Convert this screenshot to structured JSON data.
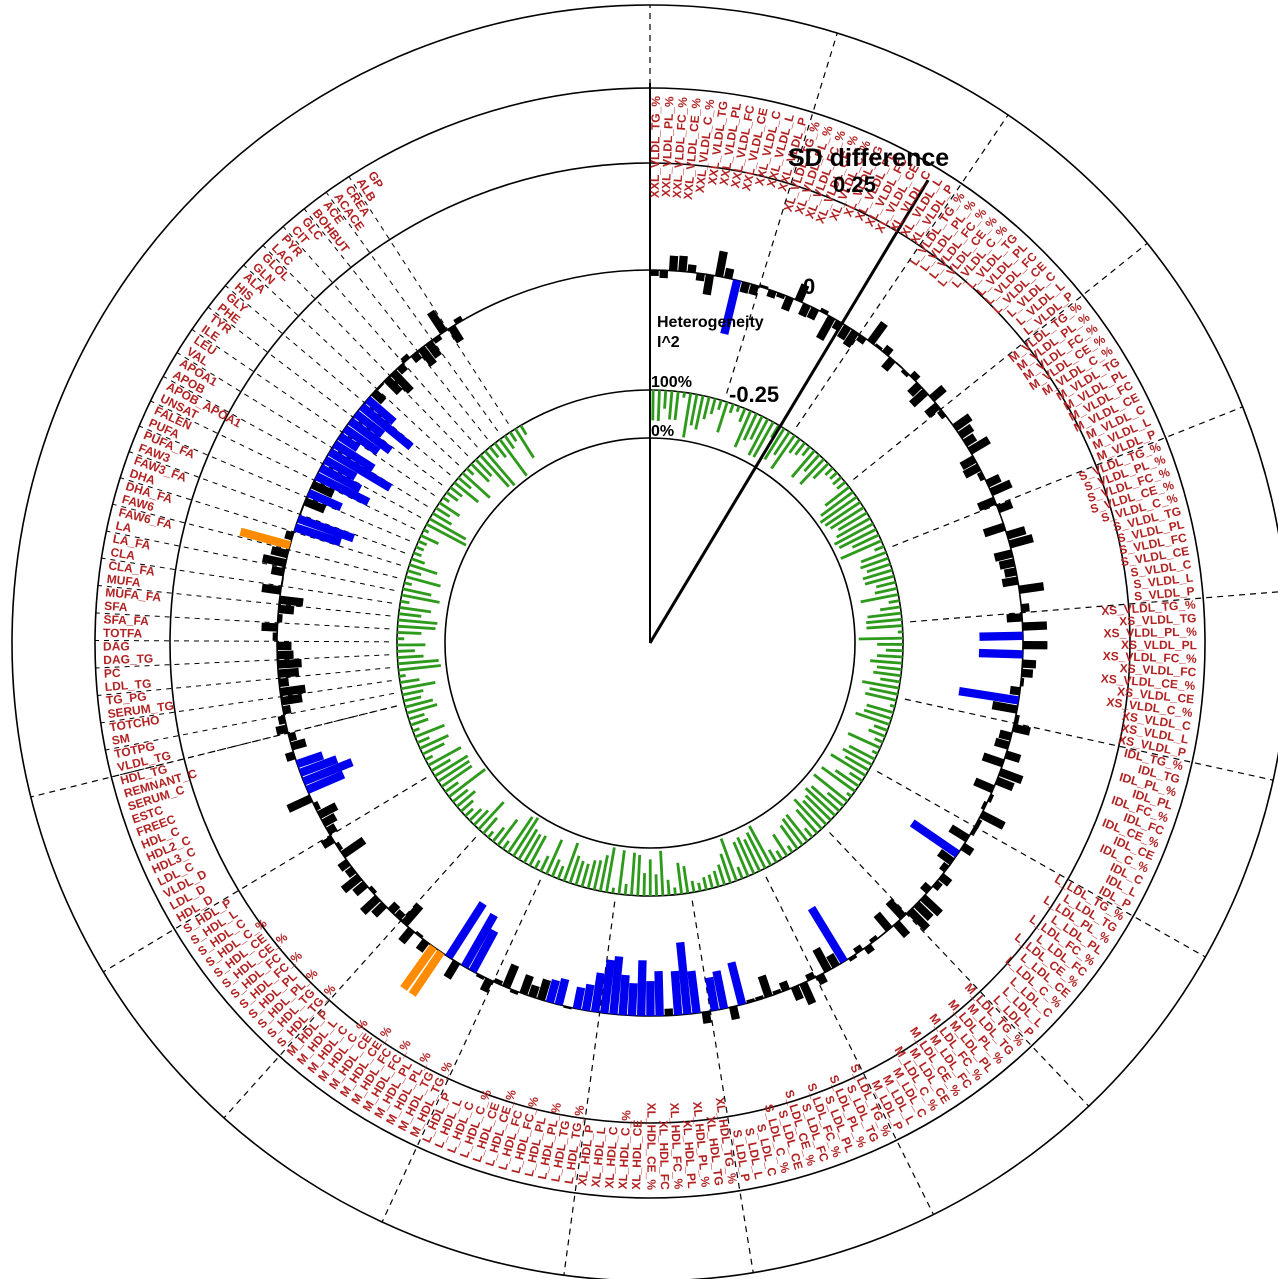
{
  "chart_data": {
    "type": "radial-bar",
    "title": "",
    "metabolites": [
      "XXL_VLDL_TG_%",
      "XXL_VLDL_PL_%",
      "XXL_VLDL_FC_%",
      "XXL_VLDL_CE_%",
      "XXL_VLDL_C_%",
      "XXL_VLDL_TG",
      "XXL_VLDL_PL",
      "XXL_VLDL_FC",
      "XXL_VLDL_CE",
      "XXL_VLDL_C",
      "XXL_VLDL_L",
      "XXL_VLDL_P",
      "XL_VLDL_TG_%",
      "XL_VLDL_PL_%",
      "XL_VLDL_FC_%",
      "XL_VLDL_CE_%",
      "XL_VLDL_C_%",
      "XL_VLDL_TG",
      "XL_VLDL_PL",
      "XL_VLDL_FC",
      "XL_VLDL_CE",
      "XL_VLDL_C",
      "XL_VLDL_L",
      "XL_VLDL_P",
      "L_VLDL_TG_%",
      "L_VLDL_PL_%",
      "L_VLDL_FC_%",
      "L_VLDL_CE_%",
      "L_VLDL_C_%",
      "L_VLDL_TG",
      "L_VLDL_PL",
      "L_VLDL_FC",
      "L_VLDL_CE",
      "L_VLDL_C",
      "L_VLDL_L",
      "L_VLDL_P",
      "M_VLDL_TG_%",
      "M_VLDL_PL_%",
      "M_VLDL_FC_%",
      "M_VLDL_CE_%",
      "M_VLDL_C_%",
      "M_VLDL_TG",
      "M_VLDL_PL",
      "M_VLDL_FC",
      "M_VLDL_CE",
      "M_VLDL_C",
      "M_VLDL_L",
      "M_VLDL_P",
      "S_VLDL_TG_%",
      "S_VLDL_PL_%",
      "S_VLDL_FC_%",
      "S_VLDL_CE_%",
      "S_VLDL_C_%",
      "S_VLDL_TG",
      "S_VLDL_PL",
      "S_VLDL_FC",
      "S_VLDL_CE",
      "S_VLDL_C",
      "S_VLDL_L",
      "S_VLDL_P",
      "XS_VLDL_TG_%",
      "XS_VLDL_TG",
      "XS_VLDL_PL_%",
      "XS_VLDL_PL",
      "XS_VLDL_FC_%",
      "XS_VLDL_FC",
      "XS_VLDL_CE_%",
      "XS_VLDL_CE",
      "XS_VLDL_C_%",
      "XS_VLDL_C",
      "XS_VLDL_L",
      "XS_VLDL_P",
      "IDL_TG_%",
      "IDL_TG",
      "IDL_PL_%",
      "IDL_PL",
      "IDL_FC_%",
      "IDL_FC",
      "IDL_CE_%",
      "IDL_CE",
      "IDL_C_%",
      "IDL_C",
      "IDL_L",
      "IDL_P",
      "L_LDL_TG_%",
      "L_LDL_TG",
      "L_LDL_PL_%",
      "L_LDL_PL",
      "L_LDL_FC_%",
      "L_LDL_FC",
      "L_LDL_CE_%",
      "L_LDL_CE",
      "L_LDL_C_%",
      "L_LDL_C",
      "L_LDL_L",
      "L_LDL_P",
      "M_LDL_TG_%",
      "M_LDL_TG",
      "M_LDL_PL_%",
      "M_LDL_PL",
      "M_LDL_FC_%",
      "M_LDL_FC",
      "M_LDL_CE_%",
      "M_LDL_CE",
      "M_LDL_C_%",
      "M_LDL_C",
      "M_LDL_L",
      "M_LDL_P",
      "S_LDL_TG_%",
      "S_LDL_TG",
      "S_LDL_PL_%",
      "S_LDL_PL",
      "S_LDL_FC_%",
      "S_LDL_FC",
      "S_LDL_CE_%",
      "S_LDL_CE",
      "S_LDL_C_%",
      "S_LDL_C",
      "S_LDL_L",
      "S_LDL_P",
      "XL_HDL_TG_%",
      "XL_HDL_TG",
      "XL_HDL_PL_%",
      "XL_HDL_PL",
      "XL_HDL_FC_%",
      "XL_HDL_FC",
      "XL_HDL_CE_%",
      "XL_HDL_CE",
      "XL_HDL_C_%",
      "XL_HDL_C",
      "XL_HDL_L",
      "XL_HDL_P",
      "L_HDL_TG_%",
      "L_HDL_TG",
      "L_HDL_PL_%",
      "L_HDL_PL",
      "L_HDL_FC_%",
      "L_HDL_FC",
      "L_HDL_CE_%",
      "L_HDL_CE",
      "L_HDL_C_%",
      "L_HDL_C",
      "L_HDL_L",
      "L_HDL_P",
      "M_HDL_TG_%",
      "M_HDL_TG",
      "M_HDL_PL_%",
      "M_HDL_PL",
      "M_HDL_FC_%",
      "M_HDL_FC",
      "M_HDL_CE_%",
      "M_HDL_CE",
      "M_HDL_C_%",
      "M_HDL_C",
      "M_HDL_L",
      "M_HDL_P",
      "S_HDL_TG_%",
      "S_HDL_TG",
      "S_HDL_PL_%",
      "S_HDL_PL",
      "S_HDL_FC_%",
      "S_HDL_FC",
      "S_HDL_CE_%",
      "S_HDL_CE",
      "S_HDL_C_%",
      "S_HDL_C",
      "S_HDL_L",
      "S_HDL_P",
      "HDL_D",
      "LDL_D",
      "VLDL_D",
      "LDL_C",
      "HDL3_C",
      "HDL2_C",
      "HDL_C",
      "FREEC",
      "ESTC",
      "SERUM_C",
      "REMNANT_C",
      "HDL_TG",
      "VLDL_TG",
      "TOTPG",
      "SM",
      "TOTCHO",
      "SERUM_TG",
      "TG_PG",
      "LDL_TG",
      "PC",
      "DAG_TG",
      "DAG",
      "TOTFA",
      "SFA_FA",
      "SFA",
      "MUFA_FA",
      "MUFA",
      "CLA_FA",
      "CLA",
      "LA_FA",
      "LA",
      "FAW6_FA",
      "FAW6",
      "DHA_FA",
      "DHA",
      "FAW3_FA",
      "FAW3",
      "PUFA_FA",
      "PUFA",
      "FALEN",
      "UNSAT",
      "APOB_APOA1",
      "APOB",
      "APOA1",
      "VAL",
      "LEU",
      "ILE",
      "TYR",
      "PHE",
      "GLY",
      "HIS",
      "ALA",
      "GLN",
      "GLOL",
      "LAC",
      "PYR",
      "CIT",
      "GLC",
      "BOHBUT",
      "ACE",
      "ACACE",
      "CREA",
      "ALB",
      "GP"
    ],
    "highlight_series": [
      {
        "color": "#000000"
      },
      {
        "color": "#0000ee"
      },
      {
        "color": "#ff8c00"
      }
    ],
    "heterogeneity_color": "#2e9a1c",
    "label_color": "#b22222",
    "sd_difference_ticks": [
      "0.25",
      "0",
      "-0.25"
    ],
    "sd_difference_range": [
      -0.25,
      0.35
    ],
    "heterogeneity_ticks": [
      "100%",
      "0%"
    ],
    "heterogeneity_range": [
      0,
      100
    ]
  },
  "axis_labels": {
    "sd_difference": "SD difference",
    "heterogeneity_line1": "Heterogeneity",
    "heterogeneity_line2": "I^2",
    "tick_sd_pos": "0.25",
    "tick_sd_zero": "0",
    "tick_sd_neg": "-0.25",
    "tick_het_max": "100%",
    "tick_het_min": "0%"
  }
}
